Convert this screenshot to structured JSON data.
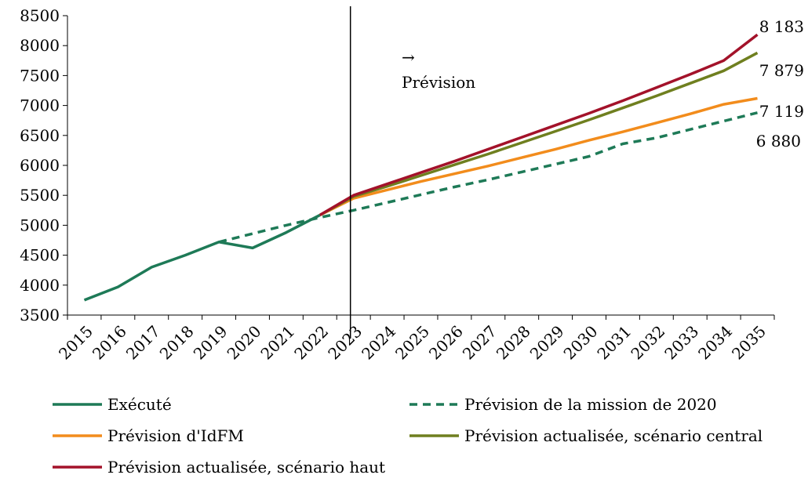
{
  "chart_data": {
    "type": "line",
    "title": "",
    "xlabel": "",
    "ylabel": "",
    "x": [
      "2015",
      "2016",
      "2017",
      "2018",
      "2019",
      "2020",
      "2021",
      "2022",
      "2023",
      "2024",
      "2025",
      "2026",
      "2027",
      "2028",
      "2029",
      "2030",
      "2031",
      "2032",
      "2033",
      "2034",
      "2035"
    ],
    "ylim": [
      3500,
      8500
    ],
    "yticks": [
      3500,
      4000,
      4500,
      5000,
      5500,
      6000,
      6500,
      7000,
      7500,
      8000,
      8500
    ],
    "grid": false,
    "legend_position": "bottom",
    "annotation": {
      "arrow": "→",
      "text": "Prévision",
      "divider_at": "2023"
    },
    "series": [
      {
        "name": "Exécuté",
        "color": "#1e7a57",
        "dash": "solid",
        "values": [
          3750,
          3970,
          4300,
          4500,
          4720,
          4620,
          4880,
          5170,
          null,
          null,
          null,
          null,
          null,
          null,
          null,
          null,
          null,
          null,
          null,
          null,
          null
        ]
      },
      {
        "name": "Prévision de la mission de 2020",
        "color": "#1e7a57",
        "dash": "dashed",
        "values": [
          null,
          null,
          null,
          null,
          4720,
          4860,
          5000,
          5130,
          5250,
          5380,
          5510,
          5640,
          5760,
          5890,
          6020,
          6150,
          6360,
          6460,
          6600,
          6740,
          6880
        ]
      },
      {
        "name": "Prévision d'IdFM",
        "color": "#f28c1c",
        "dash": "solid",
        "values": [
          null,
          null,
          null,
          null,
          null,
          null,
          null,
          5170,
          5450,
          5590,
          5730,
          5860,
          5990,
          6130,
          6270,
          6420,
          6560,
          6710,
          6860,
          7020,
          7119
        ]
      },
      {
        "name": "Prévision actualisée, scénario central",
        "color": "#6f7f1f",
        "dash": "solid",
        "values": [
          null,
          null,
          null,
          null,
          null,
          null,
          null,
          5170,
          5480,
          5650,
          5830,
          6010,
          6190,
          6380,
          6570,
          6760,
          6960,
          7160,
          7370,
          7580,
          7879
        ]
      },
      {
        "name": "Prévision actualisée, scénario haut",
        "color": "#a3122a",
        "dash": "solid",
        "values": [
          null,
          null,
          null,
          null,
          null,
          null,
          null,
          5170,
          5500,
          5690,
          5880,
          6070,
          6270,
          6470,
          6670,
          6870,
          7080,
          7300,
          7520,
          7750,
          8183
        ]
      }
    ],
    "end_labels": [
      "8 183",
      "7 879",
      "7 119",
      "6 880"
    ]
  }
}
